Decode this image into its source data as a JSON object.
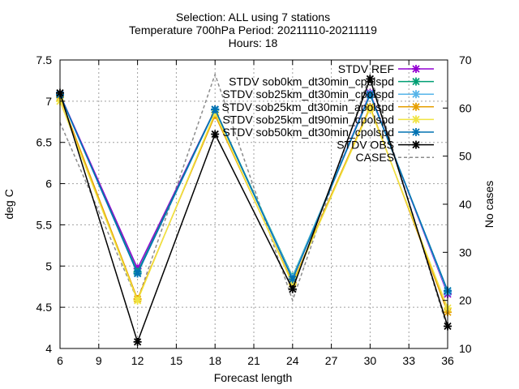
{
  "chart_data": {
    "type": "line",
    "title_lines": [
      "Selection: ALL using      7 stations",
      "Temperature 700hPa   Period: 20211110-20211119",
      "Hours: 18"
    ],
    "xlabel": "Forecast length",
    "ylabel": "deg C",
    "y2label": "No cases",
    "xlim": [
      6,
      36
    ],
    "ylim": [
      4,
      7.5
    ],
    "y2lim": [
      10,
      70
    ],
    "xticks": [
      6,
      9,
      12,
      15,
      18,
      21,
      24,
      27,
      30,
      33,
      36
    ],
    "yticks": [
      "4",
      "4.5",
      "5",
      "5.5",
      "6",
      "6.5",
      "7",
      "7.5"
    ],
    "y2ticks": [
      10,
      20,
      30,
      40,
      50,
      60,
      70
    ],
    "grid": true,
    "legend_position": "top-right",
    "x": [
      6,
      12,
      18,
      24,
      30,
      36
    ],
    "series": [
      {
        "name": "STDV REF",
        "color": "#9400d3",
        "values": [
          7.08,
          4.97,
          6.9,
          4.85,
          7.1,
          4.66
        ]
      },
      {
        "name": "STDV sob0km_dt30min_cpolspd",
        "color": "#009e73",
        "values": [
          7.07,
          4.93,
          6.9,
          4.87,
          7.08,
          4.7
        ]
      },
      {
        "name": "STDV sob25km_dt30min_cpolspd",
        "color": "#56b4e9",
        "values": [
          7.07,
          4.91,
          6.89,
          4.86,
          7.09,
          4.68
        ]
      },
      {
        "name": "STDV sob25km_dt30min_apolspd",
        "color": "#e69f00",
        "values": [
          7.05,
          4.6,
          6.83,
          4.8,
          6.93,
          4.44
        ]
      },
      {
        "name": "STDV sob25km_dt90min_cpolspd",
        "color": "#f0e442",
        "values": [
          7.0,
          4.58,
          6.86,
          4.78,
          6.91,
          4.49
        ]
      },
      {
        "name": "STDV sob50km_dt30min_cpolspd",
        "color": "#0072b2",
        "values": [
          7.08,
          4.91,
          6.9,
          4.84,
          7.08,
          4.7
        ]
      },
      {
        "name": "STDV OBS",
        "color": "#000000",
        "values": [
          7.1,
          4.08,
          6.6,
          4.72,
          7.27,
          4.27
        ]
      }
    ],
    "cases": {
      "name": "CASES",
      "color": "#8c8c8c",
      "values": [
        57,
        20,
        67,
        20,
        67,
        14
      ]
    }
  }
}
